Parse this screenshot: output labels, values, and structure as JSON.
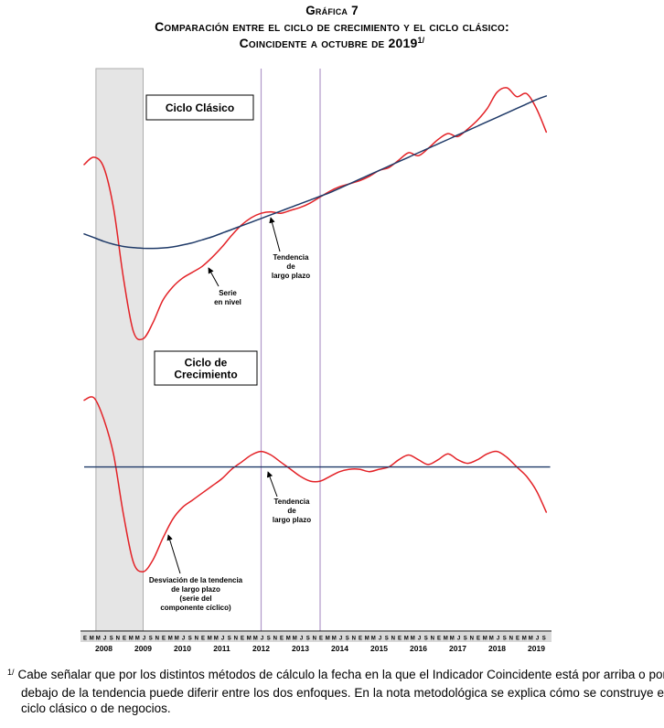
{
  "title": {
    "line1": "Gráfica 7",
    "line2": "Comparación entre el ciclo de crecimiento y el ciclo clásico:",
    "line3": "Coincidente a octubre de 2019",
    "footnote_ref": "1/"
  },
  "chart_data": {
    "type": "line",
    "x_range": [
      2008,
      2019.83
    ],
    "x_axis": {
      "years": [
        "2008",
        "2009",
        "2010",
        "2011",
        "2012",
        "2013",
        "2014",
        "2015",
        "2016",
        "2017",
        "2018",
        "2019"
      ],
      "month_labels": [
        "E",
        "M",
        "M",
        "J",
        "S",
        "N"
      ],
      "last_year_month_labels": [
        "E",
        "M",
        "M",
        "J",
        "S"
      ]
    },
    "recession_band": {
      "start": 2008.3,
      "end": 2009.5,
      "fill": "#e5e5e5",
      "edge": "#adadad"
    },
    "vertical_lines": {
      "positions": [
        2012.5,
        2014.0
      ],
      "color": "#b198c8"
    },
    "colors": {
      "series_red": "#e32227",
      "trend_blue": "#1f3a68",
      "axis": "#000000",
      "month_strip": "#d9d9d9"
    },
    "x": [
      2008,
      2008.25,
      2008.5,
      2008.75,
      2009,
      2009.25,
      2009.5,
      2009.75,
      2010,
      2010.25,
      2010.5,
      2010.75,
      2011,
      2011.25,
      2011.5,
      2011.75,
      2012,
      2012.25,
      2012.5,
      2012.75,
      2013,
      2013.25,
      2013.5,
      2013.75,
      2014,
      2014.25,
      2014.5,
      2014.75,
      2015,
      2015.25,
      2015.5,
      2015.75,
      2016,
      2016.25,
      2016.5,
      2016.75,
      2017,
      2017.25,
      2017.5,
      2017.75,
      2018,
      2018.25,
      2018.5,
      2018.75,
      2019,
      2019.25,
      2019.5,
      2019.75
    ],
    "panels": [
      {
        "id": "ciclo-clasico",
        "box_label": [
          "Ciclo Clásico"
        ],
        "ylim": [
          95,
          116
        ],
        "series": [
          {
            "name": "Serie en nivel",
            "color": "#e32227",
            "y": [
              109.5,
              110.0,
              109.3,
              106.5,
              101.8,
              98.2,
              97.7,
              98.8,
              100.3,
              101.2,
              101.8,
              102.2,
              102.6,
              103.2,
              103.9,
              104.7,
              105.4,
              105.9,
              106.2,
              106.3,
              106.2,
              106.4,
              106.6,
              106.9,
              107.3,
              107.7,
              108.0,
              108.2,
              108.4,
              108.7,
              109.1,
              109.3,
              109.8,
              110.3,
              110.1,
              110.6,
              111.2,
              111.6,
              111.4,
              111.9,
              112.5,
              113.3,
              114.4,
              114.7,
              114.1,
              114.3,
              113.3,
              111.7
            ]
          },
          {
            "name": "Tendencia de largo plazo",
            "color": "#1f3a68",
            "y": [
              104.8,
              104.55,
              104.3,
              104.1,
              103.95,
              103.87,
              103.83,
              103.82,
              103.85,
              103.92,
              104.05,
              104.2,
              104.4,
              104.6,
              104.85,
              105.1,
              105.35,
              105.6,
              105.85,
              106.1,
              106.35,
              106.6,
              106.85,
              107.1,
              107.35,
              107.6,
              107.9,
              108.2,
              108.5,
              108.8,
              109.1,
              109.4,
              109.7,
              110.0,
              110.3,
              110.6,
              110.9,
              111.2,
              111.5,
              111.8,
              112.1,
              112.4,
              112.7,
              113.0,
              113.3,
              113.6,
              113.9,
              114.15
            ]
          }
        ],
        "annotations": [
          {
            "id": "serie-en-nivel",
            "lines": [
              "Serie",
              "en nivel"
            ]
          },
          {
            "id": "tendencia-top",
            "lines": [
              "Tendencia",
              "de",
              "largo plazo"
            ]
          }
        ]
      },
      {
        "id": "ciclo-crecimiento",
        "box_label": [
          "Ciclo de",
          "Crecimiento"
        ],
        "ylim": [
          93.3,
          102.9
        ],
        "series": [
          {
            "name": "Desviación de la tendencia de largo plazo (serie del componente cíclico)",
            "color": "#e32227",
            "y": [
              102.8,
              102.9,
              102.0,
              100.5,
              98.0,
              96.0,
              95.6,
              96.1,
              97.0,
              97.8,
              98.3,
              98.6,
              98.9,
              99.2,
              99.5,
              99.9,
              100.2,
              100.5,
              100.65,
              100.5,
              100.2,
              99.9,
              99.6,
              99.4,
              99.4,
              99.6,
              99.8,
              99.9,
              99.9,
              99.8,
              99.9,
              100.0,
              100.3,
              100.5,
              100.3,
              100.1,
              100.3,
              100.55,
              100.3,
              100.15,
              100.3,
              100.55,
              100.65,
              100.4,
              100.0,
              99.6,
              99.0,
              98.1
            ]
          },
          {
            "name": "Tendencia de largo plazo",
            "color": "#1f3a68",
            "flat_value": 100,
            "x_span": [
              2008,
              2019.85
            ]
          }
        ],
        "annotations": [
          {
            "id": "tendencia-bottom",
            "lines": [
              "Tendencia",
              "de",
              "largo plazo"
            ]
          },
          {
            "id": "desviacion",
            "lines": [
              "Desviación de la tendencia",
              "de largo plazo",
              "(serie del",
              "componente cíclico)"
            ]
          }
        ]
      }
    ]
  },
  "footnote": {
    "marker": "1/",
    "text": "Cabe señalar que por los distintos métodos de cálculo la fecha en la que el Indicador Coincidente está por arriba o por debajo de la tendencia puede diferir entre los dos enfoques. En la nota metodológica se explica cómo se construye el ciclo clásico o de negocios."
  }
}
